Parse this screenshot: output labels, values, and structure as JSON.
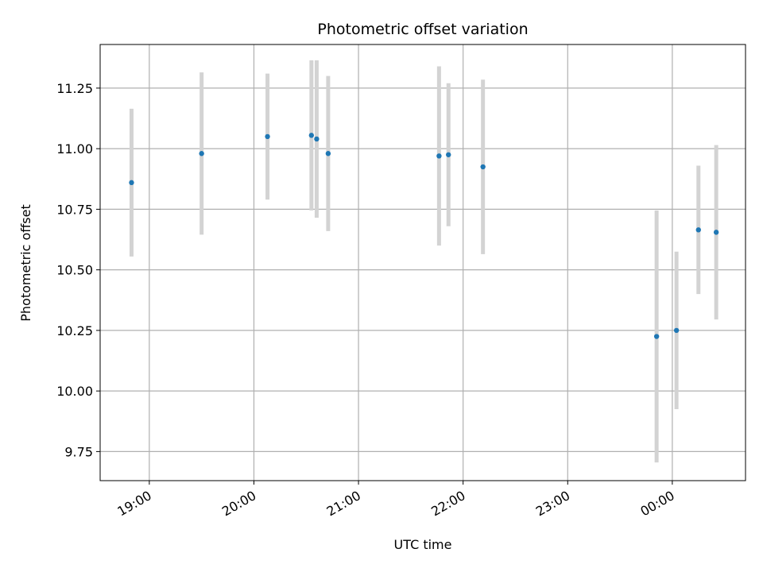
{
  "chart_data": {
    "type": "scatter",
    "title": "Photometric offset variation",
    "xlabel": "UTC time",
    "ylabel": "Photometric offset",
    "x_ticks": [
      "19:00",
      "20:00",
      "21:00",
      "22:00",
      "23:00",
      "00:00"
    ],
    "x_tick_hours": [
      19,
      20,
      21,
      22,
      23,
      24
    ],
    "y_ticks": [
      9.75,
      10.0,
      10.25,
      10.5,
      10.75,
      11.0,
      11.25
    ],
    "y_tick_labels": [
      "9.75",
      "10.00",
      "10.25",
      "10.50",
      "10.75",
      "11.00",
      "11.25"
    ],
    "xlim_hours": [
      18.53,
      24.7
    ],
    "ylim": [
      9.63,
      11.43
    ],
    "grid": true,
    "colors": {
      "point": "#1f77b4",
      "errorbar": "#d3d3d3",
      "grid": "#b0b0b0"
    },
    "points": [
      {
        "hour": 18.83,
        "y": 10.86,
        "err": 0.305
      },
      {
        "hour": 19.5,
        "y": 10.98,
        "err": 0.335
      },
      {
        "hour": 20.13,
        "y": 11.05,
        "err": 0.26
      },
      {
        "hour": 20.55,
        "y": 11.055,
        "err": 0.31
      },
      {
        "hour": 20.6,
        "y": 11.04,
        "err": 0.325
      },
      {
        "hour": 20.71,
        "y": 10.98,
        "err": 0.32
      },
      {
        "hour": 21.77,
        "y": 10.97,
        "err": 0.37
      },
      {
        "hour": 21.86,
        "y": 10.975,
        "err": 0.295
      },
      {
        "hour": 22.19,
        "y": 10.925,
        "err": 0.36
      },
      {
        "hour": 23.85,
        "y": 10.225,
        "err": 0.52
      },
      {
        "hour": 24.04,
        "y": 10.25,
        "err": 0.325
      },
      {
        "hour": 24.25,
        "y": 10.665,
        "err": 0.265
      },
      {
        "hour": 24.42,
        "y": 10.655,
        "err": 0.36
      }
    ]
  }
}
